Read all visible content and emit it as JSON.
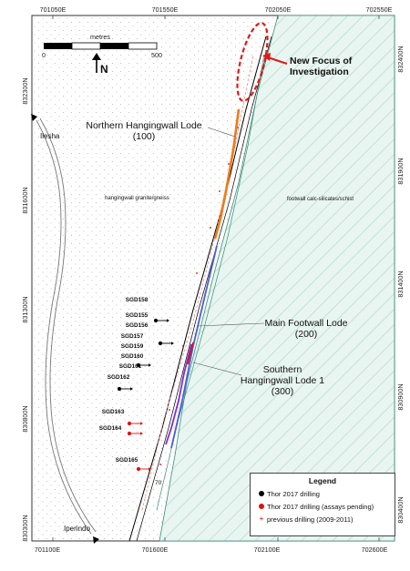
{
  "grid": {
    "top_labels": [
      "701050E",
      "701550E",
      "702050E",
      "702550E"
    ],
    "bottom_labels": [
      "701100E",
      "701600E",
      "702100E",
      "702600E"
    ],
    "left_labels": [
      "832300N",
      "831600N",
      "831300N",
      "830800N",
      "830300N"
    ],
    "right_labels": [
      "832400N",
      "831900N",
      "831400N",
      "830900N",
      "830400N"
    ]
  },
  "scale_bar": {
    "unit": "metres",
    "start": "0",
    "end": "500",
    "north": "N"
  },
  "labels": {
    "new_focus_line1": "New Focus of",
    "new_focus_line2": "Investigation",
    "northern_lode": "Northern Hangingwall Lode",
    "northern_lode_id": "(100)",
    "main_lode": "Main Footwall Lode",
    "main_lode_id": "(200)",
    "southern_lode": "Southern",
    "southern_lode_2": "Hangingwall Lode 1",
    "southern_lode_id": "(300)",
    "hangingwall": "hangingwall granite/gneiss",
    "footwall": "footwall calc-silicates/schist",
    "town_north": "Ilesha",
    "town_south": "Iperindo",
    "dip": "70"
  },
  "holes": [
    {
      "id": "SGD158",
      "status": "drilled"
    },
    {
      "id": "SGD155",
      "status": "drilled"
    },
    {
      "id": "SGD156",
      "status": "drilled"
    },
    {
      "id": "SGD157",
      "status": "drilled"
    },
    {
      "id": "SGD159",
      "status": "drilled"
    },
    {
      "id": "SGD160",
      "status": "drilled"
    },
    {
      "id": "SGD161",
      "status": "drilled"
    },
    {
      "id": "SGD162",
      "status": "drilled"
    },
    {
      "id": "SGD163",
      "status": "pending"
    },
    {
      "id": "SGD164",
      "status": "pending"
    },
    {
      "id": "SGD165",
      "status": "pending"
    }
  ],
  "colors": {
    "drilled": "#000000",
    "pending": "#dd1111",
    "northern_lode": "#f07a18",
    "main_lode": "#4a5fd8",
    "southern_lode": "#8a2bd0",
    "footwall_fill": "#e9f5f1",
    "footwall_hatch": "#b9ddd2",
    "focus": "#e01818"
  },
  "legend": {
    "title": "Legend",
    "items": [
      {
        "label": "Thor 2017 drilling",
        "symbol": "black-dot"
      },
      {
        "label": "Thor 2017 drilling (assays pending)",
        "symbol": "red-dot"
      },
      {
        "label": "previous drilling (2009-2011)",
        "symbol": "red-plus"
      }
    ]
  }
}
